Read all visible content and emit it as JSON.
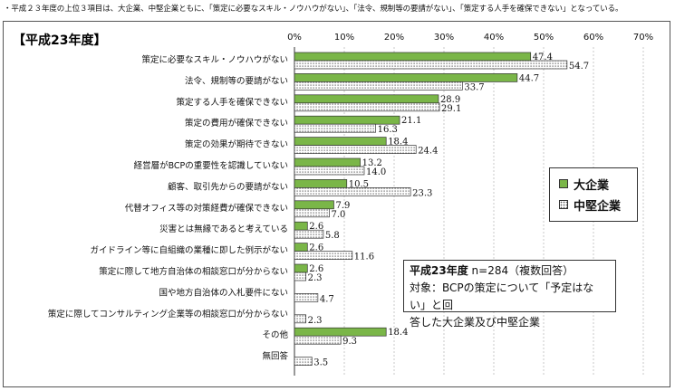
{
  "note": "・平成２３年度の上位３項目は、大企業、中堅企業ともに、「策定に必要なスキル・ノウハウがない」、「法令、規制等の要請がない」、「策定する人手を確保できない」となっている。",
  "chart_data": {
    "type": "bar",
    "orientation": "horizontal",
    "title": "【平成23年度】",
    "xlim": [
      0,
      70
    ],
    "xticks": [
      "0%",
      "10%",
      "20%",
      "30%",
      "40%",
      "50%",
      "60%",
      "70%"
    ],
    "categories": [
      "策定に必要なスキル・ノウハウがない",
      "法令、規制等の要請がない",
      "策定する人手を確保できない",
      "策定の費用が確保できない",
      "策定の効果が期待できない",
      "経営層がBCPの重要性を認識していない",
      "顧客、取引先からの要請がない",
      "代替オフィス等の対策経費が確保できない",
      "災害とは無縁であると考えている",
      "ガイドライン等に自組織の業種に即した例示がない",
      "策定に際して地方自治体の相談窓口が分からない",
      "国や地方自治体の入札要件にない",
      "策定に際してコンサルティング企業等の相談窓口が分からない",
      "その他",
      "無回答"
    ],
    "series": [
      {
        "name": "大企業",
        "color": "#7ab648",
        "values": [
          47.4,
          44.7,
          28.9,
          21.1,
          18.4,
          13.2,
          10.5,
          7.9,
          2.6,
          2.6,
          2.6,
          null,
          null,
          18.4,
          null
        ]
      },
      {
        "name": "中堅企業",
        "color": "dotted",
        "values": [
          54.7,
          33.7,
          29.1,
          16.3,
          24.4,
          14.0,
          23.3,
          7.0,
          5.8,
          11.6,
          2.3,
          4.7,
          2.3,
          9.3,
          3.5
        ]
      }
    ],
    "value_labels": {
      "large": [
        "47.4",
        "44.7",
        "28.9",
        "21.1",
        "18.4",
        "13.2",
        "10.5",
        "7.9",
        "2.6",
        "2.6",
        "2.6",
        "",
        "",
        "18.4",
        ""
      ],
      "mid": [
        "54.7",
        "33.7",
        "29.1",
        "16.3",
        "24.4",
        "14.0",
        "23.3",
        "7.0",
        "5.8",
        "11.6",
        "2.3",
        "4.7",
        "2.3",
        "9.3",
        "3.5"
      ]
    },
    "legend_position": "right"
  },
  "info": {
    "label": "平成23年度",
    "count": "n=284（複数回答）",
    "line2": "対象：BCPの策定について「予定はない」と回",
    "line3": "答した大企業及び中堅企業"
  }
}
